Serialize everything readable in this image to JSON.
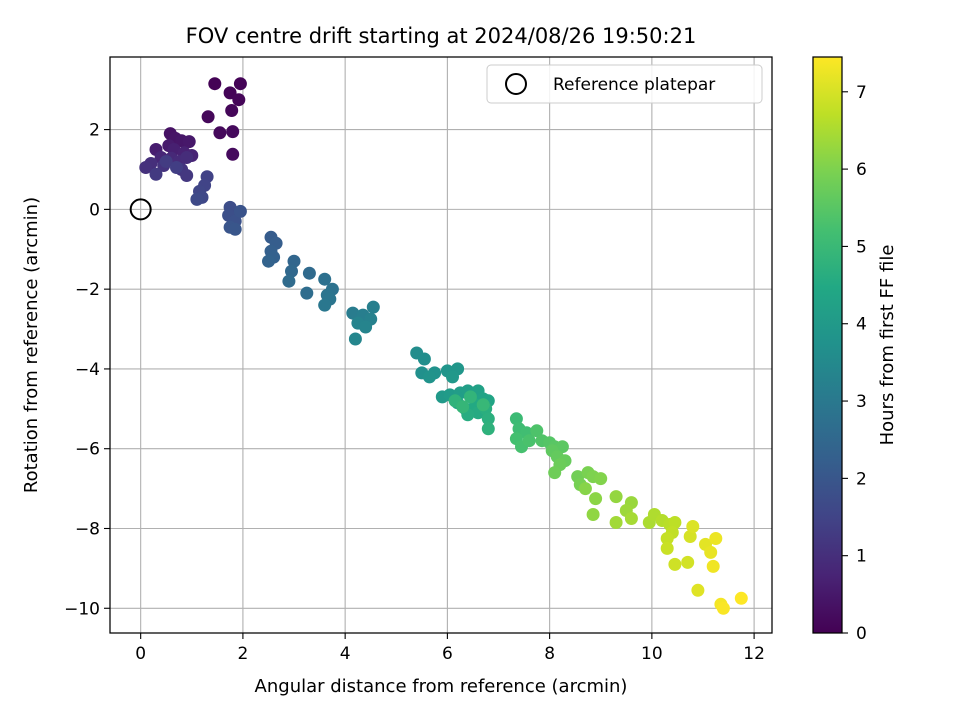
{
  "chart_data": {
    "type": "scatter",
    "title": "FOV centre drift starting at 2024/08/26 19:50:21",
    "xlabel": "Angular distance from reference (arcmin)",
    "ylabel": "Rotation from reference (arcmin)",
    "xlim": [
      -0.6,
      12.35
    ],
    "ylim": [
      -10.62,
      3.82
    ],
    "xticks": [
      0,
      2,
      4,
      6,
      8,
      10,
      12
    ],
    "yticks": [
      -10,
      -8,
      -6,
      -4,
      -2,
      0,
      2
    ],
    "xtick_labels": [
      "0",
      "2",
      "4",
      "6",
      "8",
      "10",
      "12"
    ],
    "ytick_labels": [
      "−10",
      "−8",
      "−6",
      "−4",
      "−2",
      "0",
      "2"
    ],
    "grid": true,
    "legend": {
      "label": "Reference platepar",
      "position": "top-right"
    },
    "reference_point": {
      "x": 0,
      "y": 0
    },
    "colorbar": {
      "label": "Hours from first FF file",
      "colormap": "viridis",
      "range": [
        0,
        7.45
      ],
      "ticks": [
        0,
        1,
        2,
        3,
        4,
        5,
        6,
        7
      ],
      "tick_labels": [
        "0",
        "1",
        "2",
        "3",
        "4",
        "5",
        "6",
        "7"
      ]
    },
    "series": [
      {
        "values_format": "[x_arcmin, y_arcmin, hours]",
        "points": [
          [
            1.45,
            3.15,
            0.02
          ],
          [
            1.95,
            3.15,
            0.05
          ],
          [
            1.75,
            2.92,
            0.07
          ],
          [
            1.92,
            2.75,
            0.1
          ],
          [
            1.78,
            2.48,
            0.12
          ],
          [
            1.32,
            2.32,
            0.14
          ],
          [
            1.55,
            1.92,
            0.16
          ],
          [
            1.8,
            1.95,
            0.18
          ],
          [
            1.8,
            1.38,
            0.2
          ],
          [
            0.58,
            1.9,
            0.35
          ],
          [
            0.68,
            1.78,
            0.4
          ],
          [
            0.8,
            1.72,
            0.45
          ],
          [
            0.95,
            1.7,
            0.5
          ],
          [
            0.55,
            1.6,
            0.55
          ],
          [
            0.3,
            1.5,
            0.6
          ],
          [
            0.65,
            1.5,
            0.65
          ],
          [
            0.85,
            1.42,
            0.7
          ],
          [
            1.0,
            1.35,
            0.75
          ],
          [
            0.4,
            1.3,
            0.8
          ],
          [
            0.6,
            1.28,
            0.85
          ],
          [
            0.75,
            1.2,
            0.9
          ],
          [
            0.9,
            1.3,
            0.95
          ],
          [
            0.2,
            1.15,
            1.0
          ],
          [
            0.1,
            1.05,
            1.05
          ],
          [
            0.45,
            1.1,
            1.1
          ],
          [
            0.8,
            1.0,
            1.15
          ],
          [
            0.9,
            0.85,
            1.2
          ],
          [
            0.3,
            0.88,
            1.25
          ],
          [
            0.5,
            1.2,
            1.3
          ],
          [
            0.7,
            1.05,
            1.35
          ],
          [
            1.3,
            0.82,
            1.45
          ],
          [
            1.25,
            0.6,
            1.5
          ],
          [
            1.15,
            0.45,
            1.55
          ],
          [
            1.2,
            0.3,
            1.6
          ],
          [
            1.1,
            0.25,
            1.65
          ],
          [
            1.75,
            0.05,
            1.75
          ],
          [
            1.72,
            -0.15,
            1.8
          ],
          [
            1.85,
            -0.3,
            1.85
          ],
          [
            1.95,
            -0.05,
            1.9
          ],
          [
            1.75,
            -0.45,
            1.95
          ],
          [
            1.85,
            -0.5,
            2.0
          ],
          [
            2.55,
            -0.7,
            2.15
          ],
          [
            2.65,
            -0.85,
            2.2
          ],
          [
            2.55,
            -1.05,
            2.25
          ],
          [
            2.6,
            -1.2,
            2.3
          ],
          [
            2.5,
            -1.3,
            2.35
          ],
          [
            3.0,
            -1.3,
            2.45
          ],
          [
            2.95,
            -1.55,
            2.5
          ],
          [
            3.3,
            -1.6,
            2.55
          ],
          [
            2.9,
            -1.8,
            2.6
          ],
          [
            3.25,
            -2.1,
            2.65
          ],
          [
            3.6,
            -1.75,
            2.75
          ],
          [
            3.75,
            -2.0,
            2.8
          ],
          [
            3.65,
            -2.15,
            2.85
          ],
          [
            3.7,
            -2.25,
            2.9
          ],
          [
            3.6,
            -2.4,
            2.95
          ],
          [
            4.15,
            -2.6,
            3.1
          ],
          [
            4.35,
            -2.65,
            3.15
          ],
          [
            4.55,
            -2.45,
            3.2
          ],
          [
            4.5,
            -2.75,
            3.25
          ],
          [
            4.25,
            -2.85,
            3.3
          ],
          [
            4.4,
            -2.95,
            3.35
          ],
          [
            4.2,
            -3.25,
            3.4
          ],
          [
            5.4,
            -3.6,
            3.6
          ],
          [
            5.55,
            -3.75,
            3.65
          ],
          [
            5.5,
            -4.1,
            3.7
          ],
          [
            5.75,
            -4.1,
            3.75
          ],
          [
            5.65,
            -4.2,
            3.8
          ],
          [
            6.0,
            -4.05,
            3.85
          ],
          [
            6.2,
            -4.0,
            3.9
          ],
          [
            6.1,
            -4.2,
            3.95
          ],
          [
            5.9,
            -4.7,
            4.0
          ],
          [
            6.05,
            -4.65,
            4.05
          ],
          [
            6.25,
            -4.6,
            4.1
          ],
          [
            6.4,
            -4.55,
            4.15
          ],
          [
            6.5,
            -4.7,
            4.2
          ],
          [
            6.6,
            -4.55,
            4.25
          ],
          [
            6.7,
            -4.75,
            4.3
          ],
          [
            6.8,
            -4.8,
            4.35
          ],
          [
            6.2,
            -4.85,
            4.4
          ],
          [
            6.35,
            -5.0,
            4.45
          ],
          [
            6.55,
            -4.9,
            4.5
          ],
          [
            6.6,
            -5.1,
            4.55
          ],
          [
            6.4,
            -5.15,
            4.6
          ],
          [
            6.75,
            -5.0,
            4.65
          ],
          [
            6.8,
            -5.25,
            4.7
          ],
          [
            6.8,
            -5.5,
            4.75
          ],
          [
            6.15,
            -4.8,
            4.8
          ],
          [
            6.45,
            -4.7,
            4.85
          ],
          [
            6.3,
            -4.95,
            4.9
          ],
          [
            6.7,
            -4.9,
            4.95
          ],
          [
            7.35,
            -5.25,
            5.05
          ],
          [
            7.4,
            -5.5,
            5.1
          ],
          [
            7.55,
            -5.6,
            5.15
          ],
          [
            7.35,
            -5.75,
            5.2
          ],
          [
            7.45,
            -5.95,
            5.25
          ],
          [
            7.6,
            -5.8,
            5.3
          ],
          [
            7.75,
            -5.55,
            5.35
          ],
          [
            7.85,
            -5.8,
            5.4
          ],
          [
            8.0,
            -5.85,
            5.45
          ],
          [
            8.1,
            -5.95,
            5.5
          ],
          [
            8.25,
            -5.95,
            5.55
          ],
          [
            8.05,
            -6.05,
            5.6
          ],
          [
            8.15,
            -6.2,
            5.65
          ],
          [
            8.3,
            -6.3,
            5.7
          ],
          [
            8.2,
            -6.4,
            5.75
          ],
          [
            8.1,
            -6.6,
            5.8
          ],
          [
            8.55,
            -6.7,
            5.85
          ],
          [
            8.6,
            -6.9,
            5.9
          ],
          [
            8.75,
            -6.6,
            5.95
          ],
          [
            8.85,
            -6.7,
            6.0
          ],
          [
            9.0,
            -6.75,
            6.05
          ],
          [
            8.7,
            -7.0,
            6.1
          ],
          [
            8.9,
            -7.25,
            6.15
          ],
          [
            8.85,
            -7.65,
            6.2
          ],
          [
            9.3,
            -7.2,
            6.25
          ],
          [
            9.6,
            -7.35,
            6.3
          ],
          [
            9.5,
            -7.55,
            6.35
          ],
          [
            9.3,
            -7.85,
            6.4
          ],
          [
            9.6,
            -7.75,
            6.45
          ],
          [
            9.95,
            -7.85,
            6.5
          ],
          [
            10.05,
            -7.65,
            6.55
          ],
          [
            10.2,
            -7.8,
            6.6
          ],
          [
            10.35,
            -7.9,
            6.65
          ],
          [
            10.45,
            -7.85,
            6.7
          ],
          [
            10.4,
            -8.1,
            6.75
          ],
          [
            10.3,
            -8.25,
            6.8
          ],
          [
            10.3,
            -8.5,
            6.85
          ],
          [
            10.45,
            -8.9,
            6.9
          ],
          [
            10.7,
            -8.85,
            6.95
          ],
          [
            10.75,
            -8.2,
            7.0
          ],
          [
            10.8,
            -7.95,
            7.05
          ],
          [
            10.9,
            -9.55,
            7.1
          ],
          [
            11.05,
            -8.4,
            7.15
          ],
          [
            11.15,
            -8.6,
            7.2
          ],
          [
            11.25,
            -8.25,
            7.25
          ],
          [
            11.2,
            -8.95,
            7.3
          ],
          [
            11.35,
            -9.9,
            7.35
          ],
          [
            11.4,
            -10.0,
            7.4
          ],
          [
            11.75,
            -9.75,
            7.45
          ]
        ]
      }
    ]
  }
}
